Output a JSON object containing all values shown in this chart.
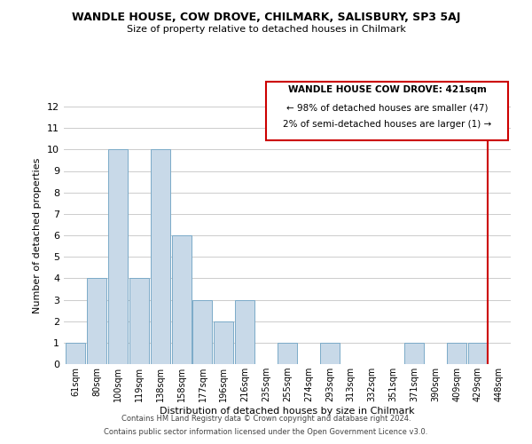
{
  "title": "WANDLE HOUSE, COW DROVE, CHILMARK, SALISBURY, SP3 5AJ",
  "subtitle": "Size of property relative to detached houses in Chilmark",
  "xlabel": "Distribution of detached houses by size in Chilmark",
  "ylabel": "Number of detached properties",
  "bar_labels": [
    "61sqm",
    "80sqm",
    "100sqm",
    "119sqm",
    "138sqm",
    "158sqm",
    "177sqm",
    "196sqm",
    "216sqm",
    "235sqm",
    "255sqm",
    "274sqm",
    "293sqm",
    "313sqm",
    "332sqm",
    "351sqm",
    "371sqm",
    "390sqm",
    "409sqm",
    "429sqm",
    "448sqm"
  ],
  "bar_values": [
    1,
    4,
    10,
    4,
    10,
    6,
    3,
    2,
    3,
    0,
    1,
    0,
    1,
    0,
    0,
    0,
    1,
    0,
    1,
    1,
    0
  ],
  "bar_color": "#c8d9e8",
  "bar_edge_color": "#7baac8",
  "ylim": [
    0,
    12
  ],
  "yticks": [
    0,
    1,
    2,
    3,
    4,
    5,
    6,
    7,
    8,
    9,
    10,
    11,
    12
  ],
  "highlight_bar_index": 19,
  "highlight_color": "#cc0000",
  "annotation_title": "WANDLE HOUSE COW DROVE: 421sqm",
  "annotation_line1": "← 98% of detached houses are smaller (47)",
  "annotation_line2": "2% of semi-detached houses are larger (1) →",
  "annotation_box_edge": "#cc0000",
  "footer1": "Contains HM Land Registry data © Crown copyright and database right 2024.",
  "footer2": "Contains public sector information licensed under the Open Government Licence v3.0.",
  "bg_color": "#ffffff",
  "grid_color": "#cccccc"
}
